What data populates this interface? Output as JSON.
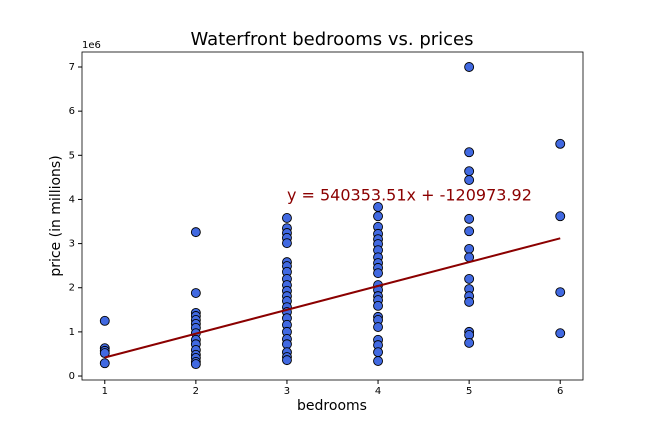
{
  "chart_data": {
    "type": "scatter",
    "title": "Waterfront bedrooms vs. prices",
    "x_label": "bedrooms",
    "y_label": "price (in millions)",
    "y_offset_label": "1e6",
    "annotation": "y = 540353.51x + -120973.92",
    "x": [
      1,
      1,
      1,
      1,
      1,
      2,
      2,
      2,
      2,
      2,
      2,
      2,
      2,
      2,
      2,
      2,
      2,
      2,
      2,
      2,
      3,
      3,
      3,
      3,
      3,
      3,
      3,
      3,
      3,
      3,
      3,
      3,
      3,
      3,
      3,
      3,
      3,
      3,
      3,
      3,
      3,
      3,
      3,
      4,
      4,
      4,
      4,
      4,
      4,
      4,
      4,
      4,
      4,
      4,
      4,
      4,
      4,
      4,
      4,
      4,
      4,
      4,
      4,
      4,
      4,
      4,
      5,
      5,
      5,
      5,
      5,
      5,
      5,
      5,
      5,
      5,
      5,
      5,
      5,
      5,
      5,
      6,
      6,
      6,
      6
    ],
    "values": [
      1.25,
      0.63,
      0.57,
      0.52,
      0.29,
      3.26,
      1.88,
      1.43,
      1.36,
      1.27,
      1.18,
      1.09,
      0.97,
      0.82,
      0.72,
      0.59,
      0.48,
      0.41,
      0.32,
      0.27,
      3.58,
      3.35,
      3.24,
      3.13,
      3.01,
      2.58,
      2.49,
      2.36,
      2.2,
      2.06,
      1.93,
      1.81,
      1.7,
      1.56,
      1.45,
      1.31,
      1.16,
      1.0,
      0.84,
      0.72,
      0.54,
      0.43,
      0.36,
      3.83,
      3.62,
      3.38,
      3.22,
      3.1,
      2.99,
      2.85,
      2.69,
      2.56,
      2.45,
      2.33,
      2.06,
      1.95,
      1.81,
      1.72,
      1.59,
      1.34,
      1.27,
      1.11,
      0.82,
      0.7,
      0.54,
      0.34,
      7.0,
      5.07,
      4.64,
      4.44,
      3.56,
      3.28,
      2.88,
      2.69,
      2.2,
      1.97,
      1.81,
      1.68,
      1.0,
      0.93,
      0.75,
      5.26,
      3.62,
      1.9,
      0.97
    ],
    "color": "#4169e1",
    "fit": {
      "x": [
        1,
        6
      ],
      "values": [
        0.42,
        3.12
      ],
      "color": "#8b0000"
    },
    "xlim": [
      0.75,
      6.25
    ],
    "ylim": [
      -0.09,
      7.34
    ],
    "xticks": [
      1,
      2,
      3,
      4,
      5,
      6
    ],
    "yticks": [
      0,
      1,
      2,
      3,
      4,
      5,
      6,
      7
    ]
  }
}
